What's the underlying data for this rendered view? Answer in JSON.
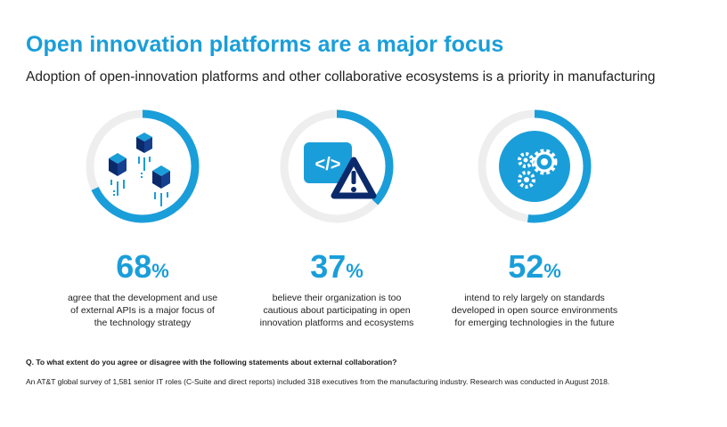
{
  "header": {
    "title": "Open innovation platforms are a major focus",
    "subtitle": "Adoption of open-innovation platforms and other collaborative ecosystems is a priority in manufacturing"
  },
  "chart_data": {
    "type": "pie",
    "title": "Open innovation platforms are a major focus",
    "subtitle": "Adoption of open-innovation platforms and other collaborative ecosystems is a priority in manufacturing",
    "categories": [
      "APIs",
      "Cautious",
      "Open source standards"
    ],
    "values": [
      68,
      37,
      52
    ],
    "unit": "%",
    "descriptions": [
      "agree that the development and use of external APIs is a major focus of the technology strategy",
      "believe their organization is too cautious about participating in open innovation platforms and ecosystems",
      "intend to rely largely on standards developed in open source environments for emerging technologies in the future"
    ],
    "accent_color": "#1a9ed9",
    "track_color": "#eeeeee"
  },
  "stats": [
    {
      "value": "68",
      "sign": "%",
      "icon": "floating-cubes-icon",
      "desc_lines": [
        "agree that the development and use",
        "of external APIs is a major focus of",
        "the technology strategy"
      ]
    },
    {
      "value": "37",
      "sign": "%",
      "icon": "code-warning-icon",
      "desc_lines": [
        "believe their organization is too",
        "cautious about participating in open",
        "innovation platforms and ecosystems"
      ]
    },
    {
      "value": "52",
      "sign": "%",
      "icon": "gears-icon",
      "desc_lines": [
        "intend to rely largely on standards",
        "developed in open source environments",
        "for emerging technologies in the future"
      ]
    }
  ],
  "footer": {
    "question": "Q. To what extent do you agree or disagree with the following statements about external collaboration?",
    "note": "An AT&T global survey of 1,581 senior IT roles (C-Suite and direct reports) included 318 executives from the manufacturing industry. Research was conducted in August 2018."
  }
}
